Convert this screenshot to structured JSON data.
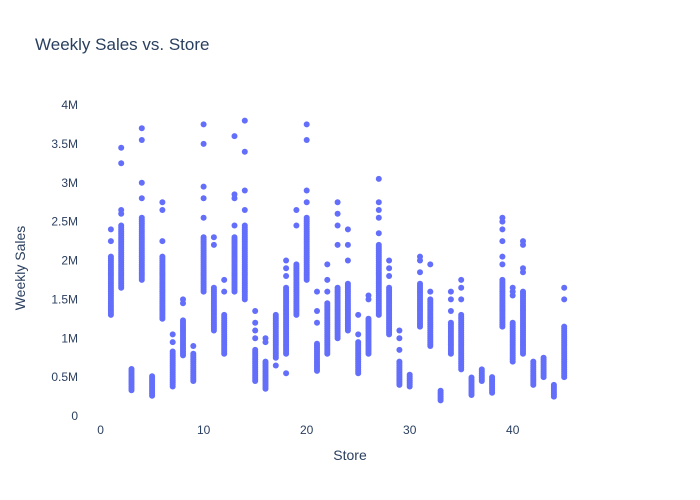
{
  "chart_data": {
    "type": "scatter",
    "title": "Weekly Sales vs. Store",
    "xlabel": "Store",
    "ylabel": "Weekly Sales",
    "xlim": [
      -2,
      47.5
    ],
    "ylim": [
      0,
      4000000
    ],
    "x_ticks": [
      0,
      10,
      20,
      30,
      40
    ],
    "x_tick_labels": [
      "0",
      "10",
      "20",
      "30",
      "40"
    ],
    "y_ticks": [
      0,
      500000,
      1000000,
      1500000,
      2000000,
      2500000,
      3000000,
      3500000,
      4000000
    ],
    "y_tick_labels": [
      "0",
      "0.5M",
      "1M",
      "1.5M",
      "2M",
      "2.5M",
      "3M",
      "3.5M",
      "4M"
    ],
    "grid": false,
    "legend": false,
    "marker_color": "#636efa",
    "stores": [
      {
        "store": 1,
        "low": 1300000,
        "high": 2050000,
        "outliers": [
          2250000,
          2400000
        ]
      },
      {
        "store": 2,
        "low": 1650000,
        "high": 2450000,
        "outliers": [
          2600000,
          2650000,
          3250000,
          3450000
        ]
      },
      {
        "store": 3,
        "low": 330000,
        "high": 620000,
        "outliers": []
      },
      {
        "store": 4,
        "low": 1750000,
        "high": 2550000,
        "outliers": [
          2800000,
          3000000,
          3550000,
          3700000
        ]
      },
      {
        "store": 5,
        "low": 260000,
        "high": 520000,
        "outliers": []
      },
      {
        "store": 6,
        "low": 1250000,
        "high": 2050000,
        "outliers": [
          2250000,
          2650000,
          2750000
        ]
      },
      {
        "store": 7,
        "low": 380000,
        "high": 850000,
        "outliers": [
          950000,
          1050000
        ]
      },
      {
        "store": 8,
        "low": 780000,
        "high": 1250000,
        "outliers": [
          1450000,
          1500000
        ]
      },
      {
        "store": 9,
        "low": 450000,
        "high": 800000,
        "outliers": [
          900000
        ]
      },
      {
        "store": 10,
        "low": 1600000,
        "high": 2300000,
        "outliers": [
          2550000,
          2800000,
          2950000,
          3500000,
          3750000
        ]
      },
      {
        "store": 11,
        "low": 1100000,
        "high": 1650000,
        "outliers": [
          2200000,
          2300000
        ]
      },
      {
        "store": 12,
        "low": 800000,
        "high": 1300000,
        "outliers": [
          1600000,
          1750000
        ]
      },
      {
        "store": 13,
        "low": 1600000,
        "high": 2300000,
        "outliers": [
          2450000,
          2800000,
          2850000,
          3600000
        ]
      },
      {
        "store": 14,
        "low": 1500000,
        "high": 2450000,
        "outliers": [
          2650000,
          2900000,
          3400000,
          3800000
        ]
      },
      {
        "store": 15,
        "low": 450000,
        "high": 850000,
        "outliers": [
          1000000,
          1100000,
          1200000,
          1350000
        ]
      },
      {
        "store": 16,
        "low": 350000,
        "high": 700000,
        "outliers": [
          950000,
          1000000
        ]
      },
      {
        "store": 17,
        "low": 750000,
        "high": 1300000,
        "outliers": [
          650000
        ]
      },
      {
        "store": 18,
        "low": 800000,
        "high": 1650000,
        "outliers": [
          550000,
          1800000,
          1900000,
          2000000
        ]
      },
      {
        "store": 19,
        "low": 1300000,
        "high": 1950000,
        "outliers": [
          2450000,
          2650000
        ]
      },
      {
        "store": 20,
        "low": 1750000,
        "high": 2550000,
        "outliers": [
          2750000,
          2900000,
          3550000,
          3750000
        ]
      },
      {
        "store": 21,
        "low": 580000,
        "high": 950000,
        "outliers": [
          1200000,
          1350000,
          1600000
        ]
      },
      {
        "store": 22,
        "low": 800000,
        "high": 1450000,
        "outliers": [
          1600000,
          1750000,
          1950000
        ]
      },
      {
        "store": 23,
        "low": 1000000,
        "high": 1650000,
        "outliers": [
          2200000,
          2450000,
          2600000,
          2750000
        ]
      },
      {
        "store": 24,
        "low": 1100000,
        "high": 1700000,
        "outliers": [
          2000000,
          2200000,
          2400000
        ]
      },
      {
        "store": 25,
        "low": 550000,
        "high": 950000,
        "outliers": [
          1050000,
          1300000
        ]
      },
      {
        "store": 26,
        "low": 800000,
        "high": 1250000,
        "outliers": [
          1500000,
          1550000
        ]
      },
      {
        "store": 27,
        "low": 1300000,
        "high": 2200000,
        "outliers": [
          2350000,
          2550000,
          2650000,
          2750000,
          3050000
        ]
      },
      {
        "store": 28,
        "low": 1050000,
        "high": 1650000,
        "outliers": [
          1800000,
          1900000,
          2000000
        ]
      },
      {
        "store": 29,
        "low": 400000,
        "high": 700000,
        "outliers": [
          850000,
          1000000,
          1100000
        ]
      },
      {
        "store": 30,
        "low": 380000,
        "high": 530000,
        "outliers": []
      },
      {
        "store": 31,
        "low": 1150000,
        "high": 1700000,
        "outliers": [
          1850000,
          2000000,
          2050000
        ]
      },
      {
        "store": 32,
        "low": 900000,
        "high": 1500000,
        "outliers": [
          1600000,
          1950000
        ]
      },
      {
        "store": 33,
        "low": 200000,
        "high": 330000,
        "outliers": []
      },
      {
        "store": 34,
        "low": 800000,
        "high": 1200000,
        "outliers": [
          1350000,
          1500000,
          1600000
        ]
      },
      {
        "store": 35,
        "low": 600000,
        "high": 1300000,
        "outliers": [
          1500000,
          1650000,
          1750000
        ]
      },
      {
        "store": 36,
        "low": 270000,
        "high": 500000,
        "outliers": []
      },
      {
        "store": 37,
        "low": 450000,
        "high": 600000,
        "outliers": []
      },
      {
        "store": 38,
        "low": 300000,
        "high": 520000,
        "outliers": []
      },
      {
        "store": 39,
        "low": 1150000,
        "high": 1750000,
        "outliers": [
          1950000,
          2050000,
          2250000,
          2400000,
          2500000,
          2550000
        ]
      },
      {
        "store": 40,
        "low": 700000,
        "high": 1200000,
        "outliers": [
          1550000,
          1600000,
          1650000
        ]
      },
      {
        "store": 41,
        "low": 800000,
        "high": 1600000,
        "outliers": [
          1850000,
          1900000,
          2200000,
          2250000
        ]
      },
      {
        "store": 42,
        "low": 400000,
        "high": 700000,
        "outliers": []
      },
      {
        "store": 43,
        "low": 500000,
        "high": 750000,
        "outliers": []
      },
      {
        "store": 44,
        "low": 250000,
        "high": 400000,
        "outliers": []
      },
      {
        "store": 45,
        "low": 500000,
        "high": 1150000,
        "outliers": [
          1500000,
          1650000
        ]
      }
    ]
  }
}
